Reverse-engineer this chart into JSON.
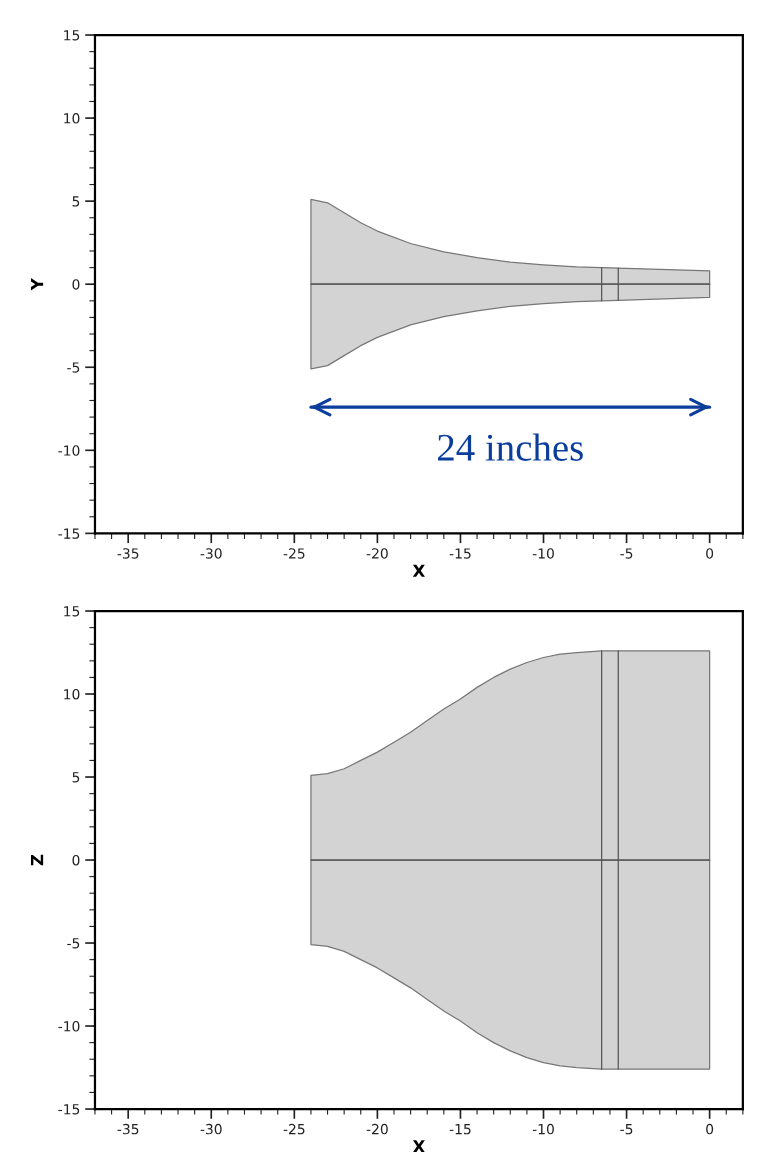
{
  "chart_data": [
    {
      "type": "line",
      "xlabel": "X",
      "ylabel": "Y",
      "xlim": [
        -37,
        2
      ],
      "ylim": [
        -15,
        15
      ],
      "xticks": [
        -35,
        -30,
        -25,
        -20,
        -15,
        -10,
        -5,
        0
      ],
      "yticks": [
        -15,
        -10,
        -5,
        0,
        5,
        10,
        15
      ],
      "grid": false,
      "legend": false,
      "marker": "none",
      "line_style": "solid",
      "series": [
        {
          "type": "area",
          "color": "#d3d3d3",
          "x": [
            -24,
            -23,
            -22,
            -21,
            -20,
            -18,
            -16,
            -14,
            -12,
            -10,
            -8,
            -6.5,
            -5.5,
            0
          ],
          "values": [
            5.1,
            4.9,
            4.3,
            3.7,
            3.2,
            2.45,
            1.95,
            1.6,
            1.33,
            1.17,
            1.05,
            1.0,
            0.97,
            0.8
          ]
        },
        {
          "type": "area",
          "color": "#d3d3d3",
          "x": [
            -24,
            -23,
            -22,
            -21,
            -20,
            -18,
            -16,
            -14,
            -12,
            -10,
            -8,
            -6.5,
            -5.5,
            0
          ],
          "values": [
            -5.1,
            -4.9,
            -4.3,
            -3.7,
            -3.2,
            -2.45,
            -1.95,
            -1.6,
            -1.33,
            -1.17,
            -1.05,
            -1.0,
            -0.97,
            -0.8
          ]
        },
        {
          "color": "#555555",
          "x": [
            -24,
            0
          ],
          "values": [
            0,
            0
          ]
        },
        {
          "color": "#555555",
          "x": [
            -6.5,
            -6.5
          ],
          "values": [
            -1.0,
            1.0
          ]
        },
        {
          "color": "#555555",
          "x": [
            -5.5,
            -5.5
          ],
          "values": [
            -0.97,
            0.97
          ]
        },
        {
          "color": "#0a3d9c",
          "x": [
            -24,
            0
          ],
          "values": [
            -7.4,
            -7.4
          ]
        }
      ],
      "annotations": [
        "24 inches"
      ]
    },
    {
      "type": "line",
      "xlabel": "X",
      "ylabel": "Z",
      "xlim": [
        -37,
        2
      ],
      "ylim": [
        -15,
        15
      ],
      "xticks": [
        -35,
        -30,
        -25,
        -20,
        -15,
        -10,
        -5,
        0
      ],
      "yticks": [
        -15,
        -10,
        -5,
        0,
        5,
        10,
        15
      ],
      "grid": false,
      "legend": false,
      "marker": "none",
      "line_style": "solid",
      "series": [
        {
          "type": "area",
          "color": "#d3d3d3",
          "x": [
            -24,
            -23,
            -22,
            -21,
            -20,
            -19,
            -18,
            -17,
            -16,
            -15,
            -14,
            -13,
            -12,
            -11,
            -10,
            -9,
            -8,
            -6.5,
            -5.5,
            0
          ],
          "values": [
            5.1,
            5.2,
            5.5,
            6.0,
            6.5,
            7.1,
            7.7,
            8.4,
            9.1,
            9.7,
            10.4,
            11.0,
            11.5,
            11.9,
            12.2,
            12.4,
            12.5,
            12.6,
            12.6,
            12.6
          ]
        },
        {
          "type": "area",
          "color": "#d3d3d3",
          "x": [
            -24,
            -23,
            -22,
            -21,
            -20,
            -19,
            -18,
            -17,
            -16,
            -15,
            -14,
            -13,
            -12,
            -11,
            -10,
            -9,
            -8,
            -6.5,
            -5.5,
            0
          ],
          "values": [
            -5.1,
            -5.2,
            -5.5,
            -6.0,
            -6.5,
            -7.1,
            -7.7,
            -8.4,
            -9.1,
            -9.7,
            -10.4,
            -11.0,
            -11.5,
            -11.9,
            -12.2,
            -12.4,
            -12.5,
            -12.6,
            -12.6,
            -12.6
          ]
        },
        {
          "color": "#555555",
          "x": [
            -24,
            0
          ],
          "values": [
            0,
            0
          ]
        },
        {
          "color": "#555555",
          "x": [
            -6.5,
            -6.5
          ],
          "values": [
            -12.6,
            12.6
          ]
        },
        {
          "color": "#555555",
          "x": [
            -5.5,
            -5.5
          ],
          "values": [
            -12.6,
            12.6
          ]
        }
      ]
    }
  ]
}
